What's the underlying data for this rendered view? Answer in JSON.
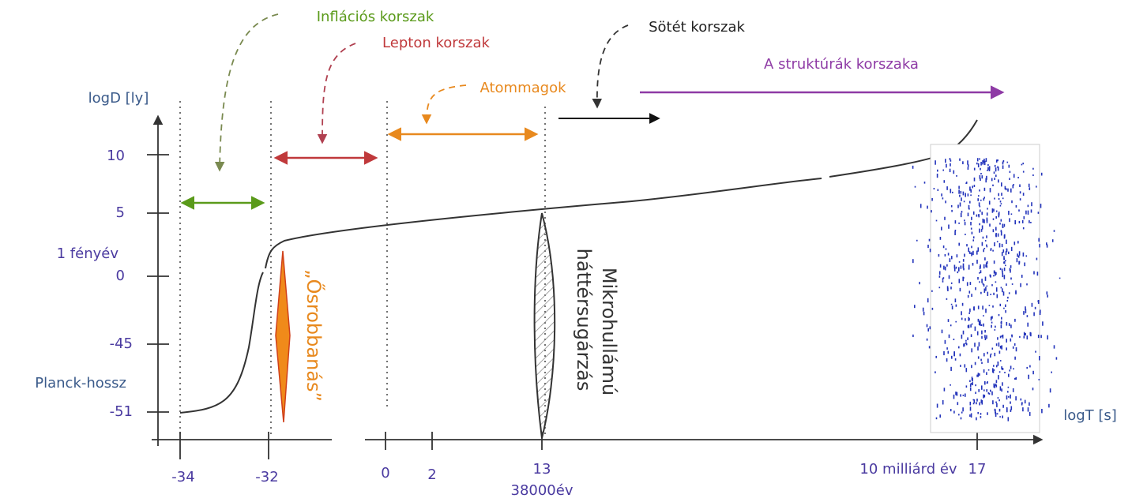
{
  "eras": {
    "inflation": "Inflációs korszak",
    "lepton": "Lepton korszak",
    "nuclei": "Atommagok",
    "dark": "Sötét korszak",
    "structures": "A struktúrák korszaka"
  },
  "axes": {
    "y_title": "logD [ly]",
    "x_title": "logT [s]",
    "y_labels": [
      "10",
      "5",
      "1 fényév",
      "0",
      "-45",
      "Planck-hossz",
      "-51"
    ],
    "x_labels": [
      "-34",
      "-32",
      "0",
      "2",
      "13",
      "38000év",
      "10 milliárd év",
      "17"
    ]
  },
  "annotations": {
    "big_bang": "„Ősrobbanás”",
    "cmb": [
      "Mikrohullámú",
      "háttérsugárzás"
    ]
  }
}
